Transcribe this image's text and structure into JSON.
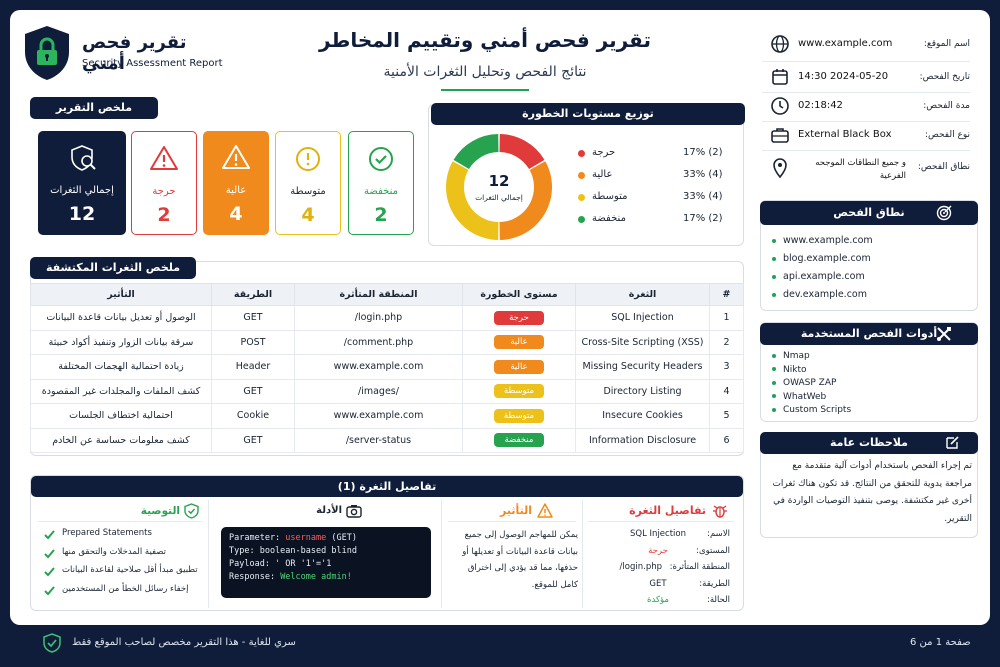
{
  "header": {
    "logo_title_ar": "تقرير فحص أمني",
    "logo_title_en": "Security Assessment Report",
    "main_title": "تقرير فحص أمني وتقييم المخاطر",
    "sub_title": "نتائج الفحص وتحليل الثغرات الأمنية"
  },
  "info": [
    {
      "label": "اسم الموقع:",
      "value": "www.example.com",
      "icon": "globe-icon"
    },
    {
      "label": "تاريخ الفحص:",
      "value": "2024-05-20 14:30",
      "icon": "calendar-icon"
    },
    {
      "label": "مدة الفحص:",
      "value": "02:18:42",
      "icon": "clock-icon"
    },
    {
      "label": "نوع الفحص:",
      "value": "External Black Box",
      "icon": "briefcase-icon"
    },
    {
      "label": "نطاق الفحص:",
      "value": "و جميع النطاقات الموجحه الفرعية",
      "icon": "location-pin-icon"
    }
  ],
  "summary": {
    "heading": "ملخص التقرير",
    "total_label": "إجمالي الثغرات",
    "total": "12",
    "critical_label": "حرجة",
    "critical": "2",
    "high_label": "عالية",
    "high": "4",
    "medium_label": "متوسطة",
    "medium": "4",
    "low_label": "منخفضة",
    "low": "2"
  },
  "distribution": {
    "heading": "توزيع مستويات الخطورة",
    "center_value": "12",
    "center_label": "إجمالي الثغرات",
    "items": [
      {
        "name": "حرجة",
        "pct": "17% (2)",
        "value": 2,
        "color": "#e03a3a"
      },
      {
        "name": "عالية",
        "pct": "33% (4)",
        "value": 4,
        "color": "#f08a1c"
      },
      {
        "name": "متوسطة",
        "pct": "33% (4)",
        "value": 4,
        "color": "#ecc21a"
      },
      {
        "name": "منخفضة",
        "pct": "17% (2)",
        "value": 2,
        "color": "#27a350"
      }
    ]
  },
  "chart_data": {
    "type": "pie",
    "categories": [
      "حرجة",
      "عالية",
      "متوسطة",
      "منخفضة"
    ],
    "values": [
      2,
      4,
      4,
      2
    ],
    "title": "توزيع مستويات الخطورة"
  },
  "scope": {
    "heading": "نطاق الفحص",
    "items": [
      "www.example.com",
      "blog.example.com",
      "api.example.com",
      "dev.example.com"
    ]
  },
  "tools": {
    "heading": "أدوات الفحص المستخدمة",
    "items": [
      "Nmap",
      "Nikto",
      "OWASP ZAP",
      "WhatWeb",
      "Custom Scripts"
    ]
  },
  "notes": {
    "heading": "ملاحظات عامة",
    "text": "تم إجراء الفحص باستخدام أدوات آلية متقدمة مع مراجعة يدوية للتحقق من النتائج. قد تكون هناك ثغرات أخرى غير مكتشفة. يوصى بتنفيذ التوصيات الواردة في التقرير."
  },
  "vulns": {
    "heading": "ملخص الثغرات المكتشفة",
    "columns": [
      "#",
      "الثغرة",
      "مستوى الخطورة",
      "المنطقة المتأثرة",
      "الطريقة",
      "التأثير"
    ],
    "rows": [
      {
        "n": "1",
        "name": "SQL Injection",
        "sev": "حرجة",
        "color": "#e03a3a",
        "area": "/login.php",
        "method": "GET",
        "impact": "الوصول أو تعديل بيانات قاعدة البيانات"
      },
      {
        "n": "2",
        "name": "Cross-Site Scripting (XSS)",
        "sev": "عالية",
        "color": "#f08a1c",
        "area": "/comment.php",
        "method": "POST",
        "impact": "سرقة بيانات الزوار وتنفيذ أكواد خبيثة"
      },
      {
        "n": "3",
        "name": "Missing Security Headers",
        "sev": "عالية",
        "color": "#f08a1c",
        "area": "www.example.com",
        "method": "Header",
        "impact": "زيادة احتمالية الهجمات المختلفة"
      },
      {
        "n": "4",
        "name": "Directory Listing",
        "sev": "متوسطة",
        "color": "#ecc21a",
        "area": "/images/",
        "method": "GET",
        "impact": "كشف الملفات والمجلدات غير المقصودة"
      },
      {
        "n": "5",
        "name": "Insecure Cookies",
        "sev": "متوسطة",
        "color": "#ecc21a",
        "area": "www.example.com",
        "method": "Cookie",
        "impact": "احتمالية اختطاف الجلسات"
      },
      {
        "n": "6",
        "name": "Information Disclosure",
        "sev": "منخفضة",
        "color": "#27a350",
        "area": "/server-status",
        "method": "GET",
        "impact": "كشف معلومات حساسة عن الخادم"
      }
    ]
  },
  "details": {
    "heading": "تفاصيل الثغرة (1)",
    "vuln_heading": "تفاصيل الثغرة",
    "name_label": "الاسم:",
    "name": "SQL Injection",
    "level_label": "المستوى:",
    "level": "حرجة",
    "area_label": "المنطقة المتأثرة:",
    "area": "/login.php",
    "method_label": "الطريقة:",
    "method": "GET",
    "status_label": "الحالة:",
    "status": "مؤكدة",
    "impact_heading": "التأثير",
    "impact_text": "يمكن للمهاجم الوصول إلى جميع بيانات قاعدة البيانات أو تعديلها أو حذفها، مما قد يؤدي إلى اختراق كامل للموقع.",
    "evidence_heading": "الأدلة",
    "evidence": {
      "l1_key": "Parameter: ",
      "l1_val": "username",
      "l1_tail": " (GET)",
      "l2": "Type: boolean-based blind",
      "l3": "Payload: ' OR '1'='1",
      "l4_key": "Response: ",
      "l4_val": "Welcome admin!"
    },
    "rec_heading": "التوصية",
    "recommendations": [
      "Prepared Statements",
      "تصفية المدخلات والتحقق منها",
      "تطبيق مبدأ أقل صلاحية لقاعدة البيانات",
      "إخفاء رسائل الخطأ من المستخدمين"
    ]
  },
  "footer": {
    "page": "صفحة 1 من 6",
    "confidential": "سري للغاية - هذا التقرير مخصص لصاحب الموقع فقط"
  }
}
